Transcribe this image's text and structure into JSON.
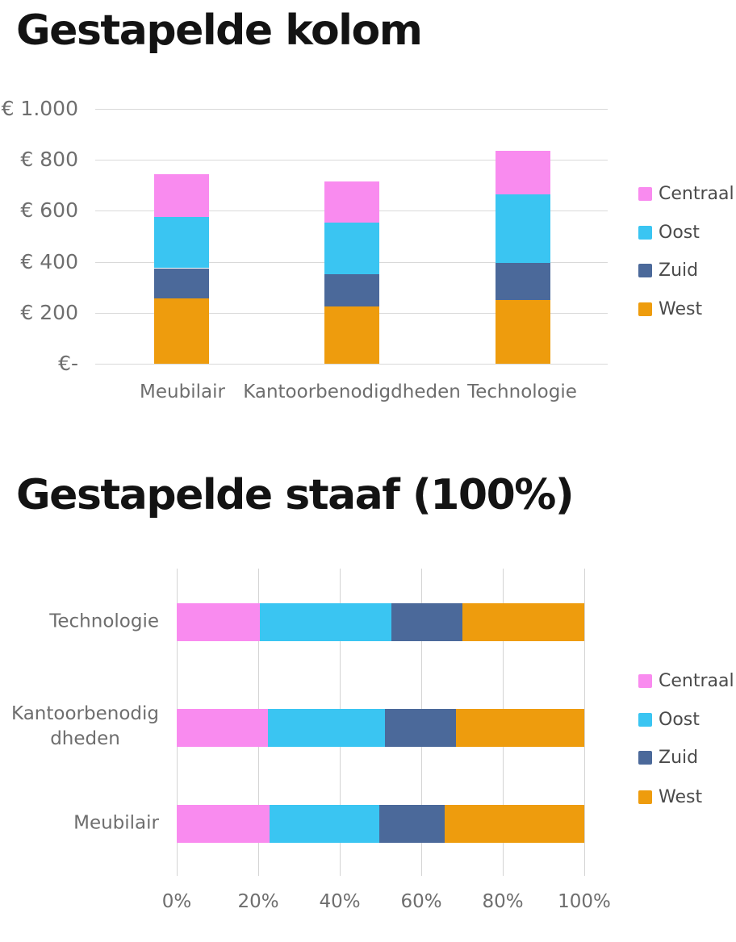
{
  "colors": {
    "centraal": "#F98BEF",
    "oost": "#3AC5F2",
    "zuid": "#4B699A",
    "west": "#EE9C0D",
    "grid": "#D9D9D9",
    "axis_text": "#6E6E6E",
    "legend_text": "#4B4B4B",
    "title_text": "#131313",
    "background": "#FFFFFF"
  },
  "chart_data": [
    {
      "id": "stacked-column",
      "type": "bar",
      "variant": "stacked-column",
      "title": "Gestapelde kolom",
      "categories": [
        "Meubilair",
        "Kantoorbenodigdheden",
        "Technologie"
      ],
      "series": [
        {
          "name": "West",
          "color": "#EE9C0D",
          "values": [
            255,
            225,
            250
          ]
        },
        {
          "name": "Zuid",
          "color": "#4B699A",
          "values": [
            120,
            125,
            145
          ]
        },
        {
          "name": "Oost",
          "color": "#3AC5F2",
          "values": [
            200,
            205,
            270
          ]
        },
        {
          "name": "Centraal",
          "color": "#F98BEF",
          "values": [
            170,
            160,
            170
          ]
        }
      ],
      "stack_order_bottom_to_top": [
        "West",
        "Zuid",
        "Oost",
        "Centraal"
      ],
      "y_axis": {
        "ticks": [
          "€ 1.000",
          "€ 800",
          "€ 600",
          "€ 400",
          "€ 200",
          "€-"
        ],
        "min": 0,
        "max": 1000,
        "currency": "EUR"
      },
      "grid": "horizontal",
      "legend": {
        "position": "right",
        "items": [
          "Centraal",
          "Oost",
          "Zuid",
          "West"
        ]
      }
    },
    {
      "id": "stacked-bar-100",
      "type": "bar",
      "variant": "horizontal-stacked-100",
      "title": "Gestapelde staaf (100%)",
      "categories": [
        "Technologie",
        "Kantoorbenodigdheden",
        "Meubilair"
      ],
      "category_label_lines": [
        [
          "Technologie"
        ],
        [
          "Kantoorbenodig",
          "dheden"
        ],
        [
          "Meubilair"
        ]
      ],
      "series": [
        {
          "name": "Centraal",
          "color": "#F98BEF",
          "values": [
            170,
            160,
            170
          ],
          "values_pct": [
            20.4,
            22.4,
            22.8
          ]
        },
        {
          "name": "Oost",
          "color": "#3AC5F2",
          "values": [
            270,
            205,
            200
          ],
          "values_pct": [
            32.3,
            28.7,
            26.8
          ]
        },
        {
          "name": "Zuid",
          "color": "#4B699A",
          "values": [
            145,
            125,
            120
          ],
          "values_pct": [
            17.4,
            17.5,
            16.1
          ]
        },
        {
          "name": "West",
          "color": "#EE9C0D",
          "values": [
            250,
            225,
            255
          ],
          "values_pct": [
            29.9,
            31.5,
            34.2
          ]
        }
      ],
      "segment_order_left_to_right": [
        "Centraal",
        "Oost",
        "Zuid",
        "West"
      ],
      "x_axis": {
        "ticks": [
          "0%",
          "20%",
          "40%",
          "60%",
          "80%",
          "100%"
        ],
        "min": 0,
        "max": 100
      },
      "grid": "vertical",
      "legend": {
        "position": "right",
        "items": [
          "Centraal",
          "Oost",
          "Zuid",
          "West"
        ]
      }
    }
  ]
}
